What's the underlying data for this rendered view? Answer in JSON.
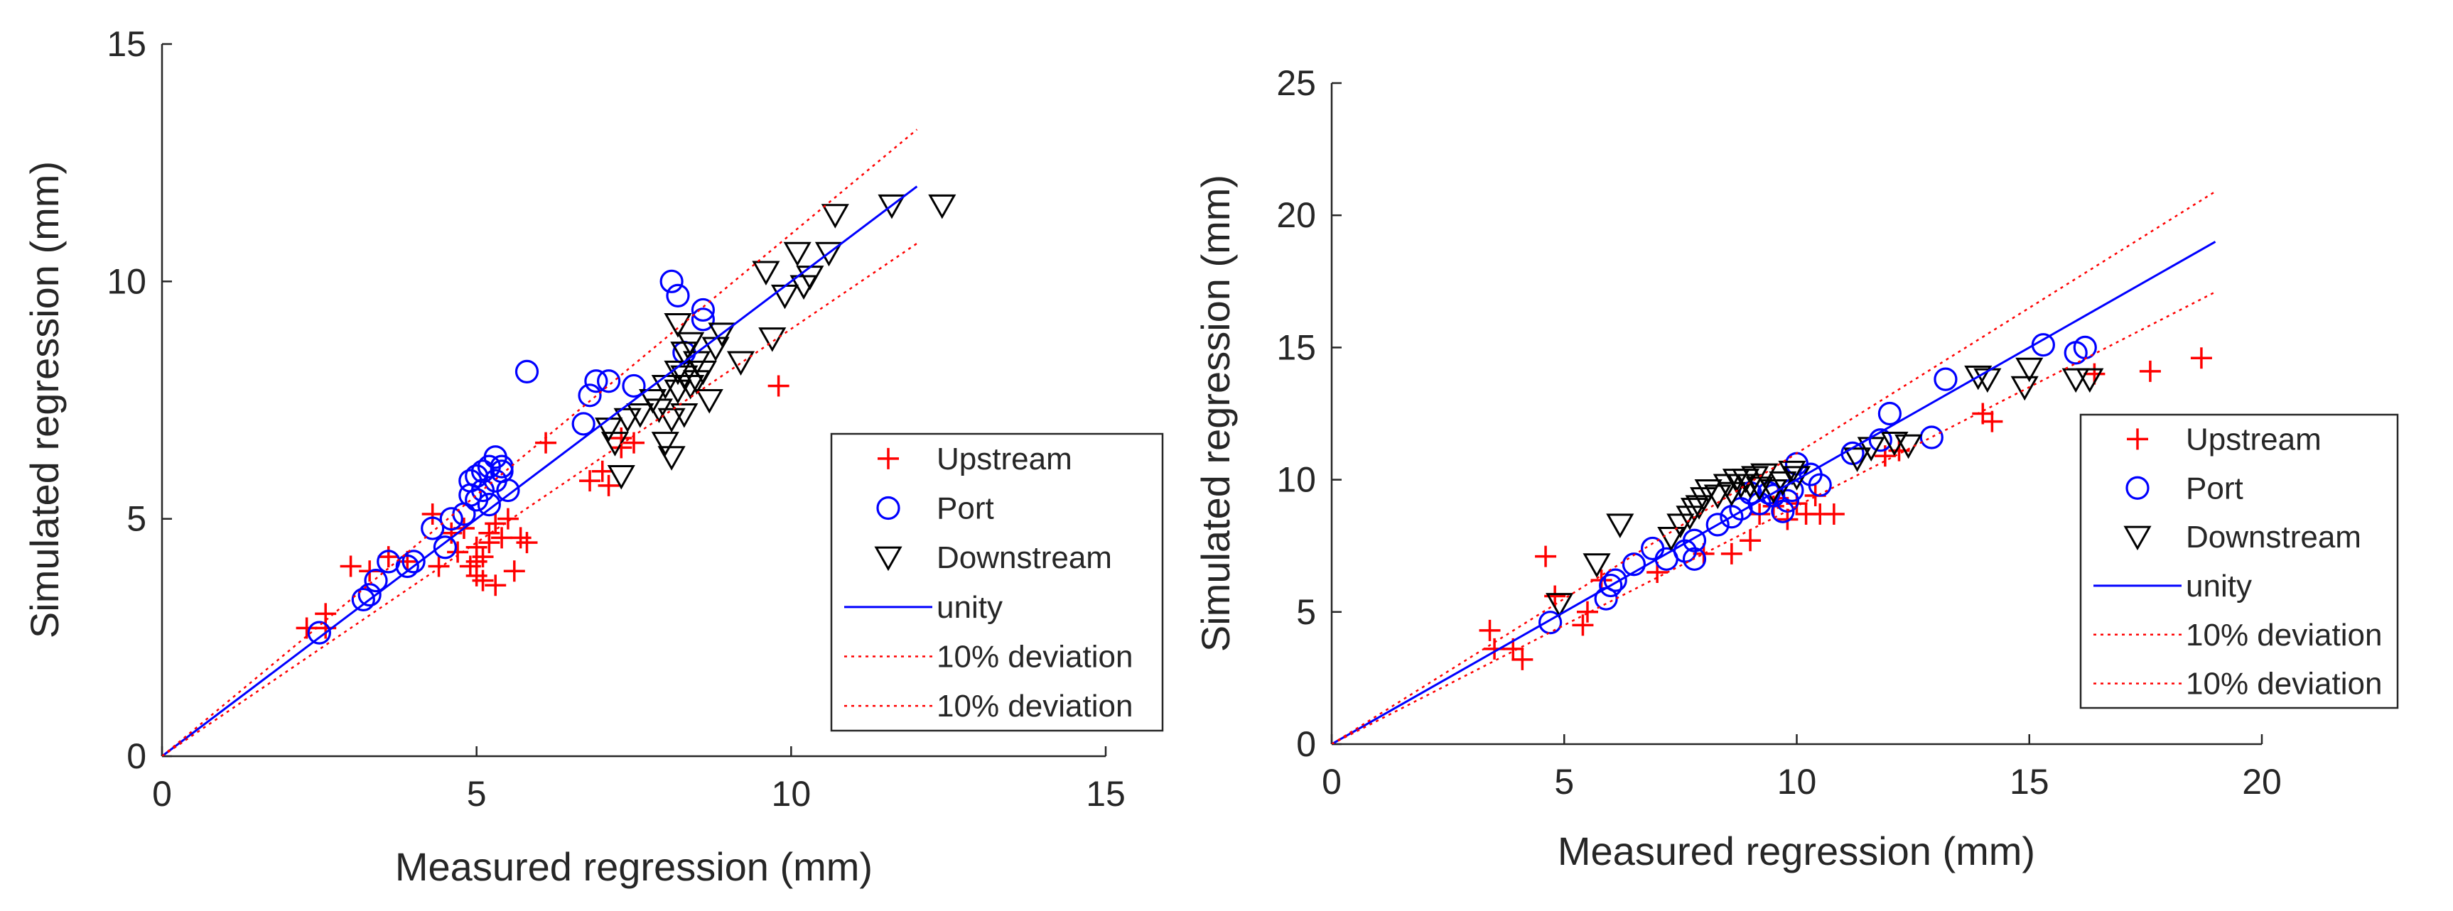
{
  "chart_data": [
    {
      "type": "scatter",
      "title": "",
      "xlabel": "Measured regression (mm)",
      "ylabel": "Simulated regression (mm)",
      "xlim": [
        0,
        15
      ],
      "ylim": [
        0,
        15
      ],
      "xticks": [
        "0",
        "5",
        "10",
        "15"
      ],
      "yticks": [
        "0",
        "5",
        "10",
        "15"
      ],
      "grid": false,
      "legend_position": "lower-right",
      "legend": [
        "Upstream",
        "Port",
        "Downstream",
        "unity",
        "10% deviation",
        "10% deviation"
      ],
      "series": [
        {
          "name": "Upstream",
          "marker": "plus",
          "color": "#ff0000",
          "x": [
            2.3,
            2.6,
            2.6,
            3.0,
            3.3,
            3.6,
            3.9,
            4.3,
            4.4,
            4.6,
            4.7,
            4.8,
            4.9,
            5.0,
            5.0,
            5.0,
            5.1,
            5.1,
            5.2,
            5.2,
            5.3,
            5.3,
            5.4,
            5.5,
            5.6,
            5.7,
            5.8,
            6.1,
            6.8,
            7.0,
            7.1,
            7.3,
            7.3,
            7.5,
            9.8
          ],
          "y": [
            2.7,
            2.7,
            3.0,
            4.0,
            3.9,
            4.2,
            4.1,
            5.1,
            4.0,
            4.7,
            4.3,
            4.8,
            4.0,
            4.4,
            3.8,
            4.1,
            4.2,
            3.7,
            4.7,
            4.5,
            3.6,
            4.9,
            4.6,
            5.0,
            3.9,
            4.6,
            4.5,
            6.6,
            5.8,
            6.0,
            5.7,
            6.5,
            6.7,
            6.6,
            7.8
          ]
        },
        {
          "name": "Port",
          "marker": "circle",
          "color": "#0000ff",
          "x": [
            2.5,
            3.2,
            3.3,
            3.4,
            3.6,
            3.9,
            4.0,
            4.3,
            4.5,
            4.6,
            4.8,
            4.9,
            4.9,
            5.0,
            5.0,
            5.1,
            5.1,
            5.2,
            5.2,
            5.3,
            5.3,
            5.4,
            5.4,
            5.5,
            5.8,
            6.7,
            6.8,
            6.9,
            7.1,
            7.5,
            8.1,
            8.2,
            8.3,
            8.6,
            8.6
          ],
          "y": [
            2.6,
            3.3,
            3.4,
            3.7,
            4.1,
            4.0,
            4.1,
            4.8,
            4.4,
            5.0,
            5.1,
            5.5,
            5.8,
            5.4,
            5.9,
            5.6,
            6.0,
            5.3,
            6.1,
            6.3,
            5.8,
            6.0,
            6.1,
            5.6,
            8.1,
            7.0,
            7.6,
            7.9,
            7.9,
            7.8,
            10.0,
            9.7,
            8.5,
            9.4,
            9.2
          ]
        },
        {
          "name": "Downstream",
          "marker": "triangle-down",
          "color": "#000000",
          "x": [
            7.1,
            7.2,
            7.3,
            7.4,
            7.6,
            7.8,
            7.9,
            8.0,
            8.0,
            8.1,
            8.1,
            8.2,
            8.2,
            8.2,
            8.3,
            8.3,
            8.3,
            8.4,
            8.4,
            8.5,
            8.5,
            8.6,
            8.7,
            8.8,
            8.9,
            9.2,
            9.6,
            9.7,
            9.9,
            10.1,
            10.2,
            10.3,
            10.6,
            10.7,
            11.6,
            12.4
          ],
          "y": [
            6.9,
            6.6,
            5.9,
            7.1,
            7.2,
            7.5,
            7.3,
            7.8,
            6.6,
            7.1,
            6.3,
            7.7,
            9.1,
            8.1,
            8.0,
            7.2,
            8.5,
            7.8,
            8.7,
            7.9,
            8.3,
            8.1,
            7.5,
            8.6,
            8.9,
            8.3,
            10.2,
            8.8,
            9.7,
            10.6,
            9.9,
            10.1,
            10.6,
            11.4,
            11.6,
            11.6
          ]
        },
        {
          "name": "unity",
          "type": "line",
          "color": "#0000ff",
          "style": "solid",
          "x": [
            0,
            12
          ],
          "y": [
            0,
            12
          ]
        },
        {
          "name": "10% deviation",
          "type": "line",
          "color": "#ff0000",
          "style": "dotted",
          "x": [
            0,
            12
          ],
          "y": [
            0,
            13.2
          ]
        },
        {
          "name": "10% deviation",
          "type": "line",
          "color": "#ff0000",
          "style": "dotted",
          "x": [
            0,
            12
          ],
          "y": [
            0,
            10.8
          ]
        }
      ]
    },
    {
      "type": "scatter",
      "title": "",
      "xlabel": "Measured regression (mm)",
      "ylabel": "Simulated regression (mm)",
      "xlim": [
        0,
        20
      ],
      "ylim": [
        0,
        25
      ],
      "xticks": [
        "0",
        "5",
        "10",
        "15",
        "20"
      ],
      "yticks": [
        "0",
        "5",
        "10",
        "15",
        "20",
        "25"
      ],
      "grid": false,
      "legend_position": "right",
      "legend": [
        "Upstream",
        "Port",
        "Downstream",
        "unity",
        "10% deviation",
        "10% deviation"
      ],
      "series": [
        {
          "name": "Upstream",
          "marker": "plus",
          "color": "#ff0000",
          "x": [
            3.4,
            3.5,
            3.9,
            4.1,
            4.6,
            4.8,
            5.4,
            5.5,
            5.8,
            7.0,
            8.0,
            8.6,
            9.0,
            9.2,
            9.5,
            9.6,
            9.8,
            10.0,
            10.2,
            10.4,
            10.5,
            10.8,
            11.9,
            12.2,
            14.0,
            14.2,
            16.4,
            17.6,
            18.7
          ],
          "y": [
            4.3,
            3.6,
            3.6,
            3.2,
            7.1,
            5.6,
            4.5,
            5.0,
            6.2,
            6.5,
            7.2,
            7.2,
            7.7,
            8.7,
            9.0,
            9.3,
            8.5,
            9.1,
            8.7,
            9.4,
            8.7,
            8.7,
            10.9,
            11.1,
            12.5,
            12.2,
            14.0,
            14.1,
            14.6
          ]
        },
        {
          "name": "Port",
          "marker": "circle",
          "color": "#0000ff",
          "x": [
            4.7,
            5.9,
            6.0,
            6.1,
            6.5,
            6.9,
            7.2,
            7.6,
            7.8,
            7.8,
            8.3,
            8.6,
            8.8,
            9.0,
            9.2,
            9.4,
            9.5,
            9.7,
            9.8,
            9.9,
            10.0,
            10.3,
            10.5,
            11.2,
            11.8,
            12.0,
            12.9,
            13.2,
            15.3,
            16.0,
            16.2
          ],
          "y": [
            4.6,
            5.5,
            6.0,
            6.2,
            6.8,
            7.4,
            7.0,
            7.3,
            7.7,
            7.0,
            8.3,
            8.6,
            8.9,
            9.5,
            9.1,
            9.5,
            9.4,
            8.8,
            9.2,
            9.6,
            10.6,
            10.2,
            9.8,
            11.0,
            11.5,
            12.5,
            11.6,
            13.8,
            15.1,
            14.8,
            15.0
          ]
        },
        {
          "name": "Downstream",
          "marker": "triangle-down",
          "color": "#000000",
          "x": [
            4.9,
            5.7,
            6.2,
            7.3,
            7.5,
            7.7,
            7.8,
            7.9,
            8.0,
            8.1,
            8.3,
            8.5,
            8.6,
            8.7,
            8.8,
            8.9,
            9.0,
            9.1,
            9.2,
            9.3,
            9.5,
            9.7,
            9.9,
            10.0,
            11.3,
            11.6,
            12.1,
            12.4,
            13.9,
            14.1,
            14.9,
            15.0,
            16.0,
            16.3
          ],
          "y": [
            5.3,
            6.8,
            8.3,
            7.8,
            8.3,
            8.6,
            8.9,
            9.0,
            9.3,
            9.6,
            9.4,
            9.8,
            9.5,
            10.0,
            9.8,
            10.0,
            9.8,
            10.1,
            9.7,
            10.2,
            9.6,
            9.9,
            10.3,
            10.1,
            10.8,
            11.2,
            11.4,
            11.3,
            13.9,
            13.8,
            13.5,
            14.2,
            13.8,
            13.8
          ]
        },
        {
          "name": "unity",
          "type": "line",
          "color": "#0000ff",
          "style": "solid",
          "x": [
            0,
            19
          ],
          "y": [
            0,
            19
          ]
        },
        {
          "name": "10% deviation",
          "type": "line",
          "color": "#ff0000",
          "style": "dotted",
          "x": [
            0,
            19
          ],
          "y": [
            0,
            20.9
          ]
        },
        {
          "name": "10% deviation",
          "type": "line",
          "color": "#ff0000",
          "style": "dotted",
          "x": [
            0,
            19
          ],
          "y": [
            0,
            17.1
          ]
        }
      ]
    }
  ]
}
